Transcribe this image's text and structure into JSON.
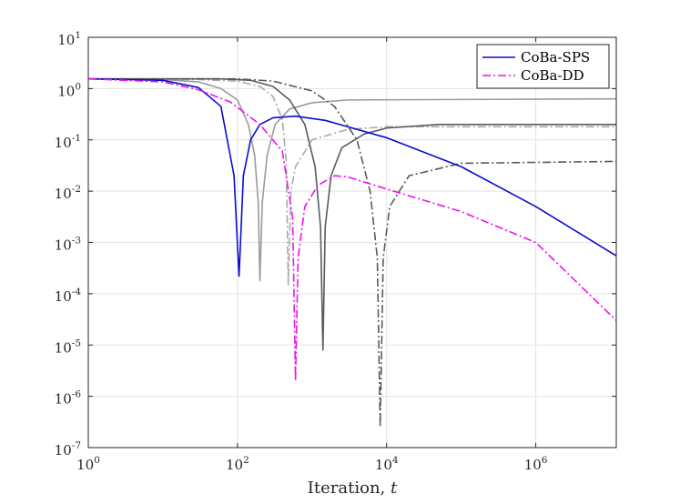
{
  "chart_data": {
    "type": "line",
    "title": "",
    "xlabel": "Iteration, ",
    "xlabel_var": "t",
    "ylabel": "",
    "xscale": "log",
    "yscale": "log",
    "xlim": [
      1,
      12000000
    ],
    "ylim": [
      1e-07,
      10
    ],
    "grid": true,
    "legend_position": "top-right",
    "x_ticks": [
      {
        "value": 1,
        "base": "10",
        "exp": "0"
      },
      {
        "value": 100,
        "base": "10",
        "exp": "2"
      },
      {
        "value": 10000,
        "base": "10",
        "exp": "4"
      },
      {
        "value": 1000000,
        "base": "10",
        "exp": "6"
      }
    ],
    "y_ticks": [
      {
        "value": 10,
        "base": "10",
        "exp": "1"
      },
      {
        "value": 1,
        "base": "10",
        "exp": "0"
      },
      {
        "value": 0.1,
        "base": "10",
        "exp": "-1"
      },
      {
        "value": 0.01,
        "base": "10",
        "exp": "-2"
      },
      {
        "value": 0.001,
        "base": "10",
        "exp": "-3"
      },
      {
        "value": 0.0001,
        "base": "10",
        "exp": "-4"
      },
      {
        "value": 1e-05,
        "base": "10",
        "exp": "-5"
      },
      {
        "value": 1e-06,
        "base": "10",
        "exp": "-6"
      },
      {
        "value": 1e-07,
        "base": "10",
        "exp": "-7"
      }
    ],
    "series": [
      {
        "name": "gray-solid-1",
        "legend": false,
        "color": "#9b9b9b",
        "dash": "solid",
        "points": [
          [
            1,
            1.55
          ],
          [
            10,
            1.5
          ],
          [
            30,
            1.35
          ],
          [
            60,
            1.0
          ],
          [
            100,
            0.6
          ],
          [
            140,
            0.2
          ],
          [
            170,
            0.05
          ],
          [
            190,
            0.006
          ],
          [
            200,
            0.00018
          ],
          [
            215,
            0.006
          ],
          [
            250,
            0.05
          ],
          [
            320,
            0.2
          ],
          [
            500,
            0.4
          ],
          [
            1000,
            0.53
          ],
          [
            3000,
            0.6
          ],
          [
            12000000,
            0.63
          ]
        ]
      },
      {
        "name": "gray-dashdot-1",
        "legend": false,
        "color": "#aaaaaa",
        "dash": "dashdot",
        "points": [
          [
            1,
            1.55
          ],
          [
            30,
            1.5
          ],
          [
            100,
            1.4
          ],
          [
            200,
            1.1
          ],
          [
            300,
            0.7
          ],
          [
            400,
            0.25
          ],
          [
            450,
            0.04
          ],
          [
            480,
            0.00015
          ],
          [
            520,
            0.01
          ],
          [
            600,
            0.03
          ],
          [
            1000,
            0.1
          ],
          [
            3000,
            0.16
          ],
          [
            10000,
            0.18
          ],
          [
            12000000,
            0.18
          ]
        ]
      },
      {
        "name": "dark-solid-1",
        "legend": false,
        "color": "#5a5a5a",
        "dash": "solid",
        "points": [
          [
            1,
            1.55
          ],
          [
            60,
            1.55
          ],
          [
            150,
            1.45
          ],
          [
            300,
            1.1
          ],
          [
            500,
            0.6
          ],
          [
            800,
            0.2
          ],
          [
            1100,
            0.03
          ],
          [
            1300,
            0.002
          ],
          [
            1400,
            8e-06
          ],
          [
            1500,
            0.002
          ],
          [
            1800,
            0.02
          ],
          [
            2500,
            0.07
          ],
          [
            5000,
            0.13
          ],
          [
            10000,
            0.17
          ],
          [
            50000,
            0.2
          ],
          [
            12000000,
            0.2
          ]
        ]
      },
      {
        "name": "dark-dashdot-1",
        "legend": false,
        "color": "#5a5a5a",
        "dash": "dashdot",
        "points": [
          [
            1,
            1.55
          ],
          [
            100,
            1.55
          ],
          [
            300,
            1.4
          ],
          [
            1000,
            0.9
          ],
          [
            2000,
            0.45
          ],
          [
            4000,
            0.1
          ],
          [
            6000,
            0.01
          ],
          [
            7500,
            0.0005
          ],
          [
            8200,
            2.5e-07
          ],
          [
            9000,
            0.0005
          ],
          [
            11000,
            0.005
          ],
          [
            20000,
            0.02
          ],
          [
            100000,
            0.035
          ],
          [
            12000000,
            0.038
          ]
        ]
      },
      {
        "name": "CoBa-SPS",
        "legend": true,
        "color": "#0a0ad2",
        "dash": "solid",
        "points": [
          [
            1,
            1.55
          ],
          [
            10,
            1.45
          ],
          [
            30,
            1.05
          ],
          [
            60,
            0.45
          ],
          [
            90,
            0.02
          ],
          [
            105,
            0.00022
          ],
          [
            120,
            0.02
          ],
          [
            150,
            0.1
          ],
          [
            200,
            0.2
          ],
          [
            300,
            0.27
          ],
          [
            600,
            0.29
          ],
          [
            1500,
            0.24
          ],
          [
            10000,
            0.11
          ],
          [
            100000,
            0.03
          ],
          [
            1000000,
            0.005
          ],
          [
            12000000,
            0.00055
          ]
        ]
      },
      {
        "name": "CoBa-DD",
        "legend": true,
        "color": "#ee11ee",
        "dash": "dashdot",
        "points": [
          [
            1,
            1.55
          ],
          [
            10,
            1.35
          ],
          [
            30,
            0.95
          ],
          [
            80,
            0.55
          ],
          [
            200,
            0.2
          ],
          [
            400,
            0.06
          ],
          [
            550,
            0.003
          ],
          [
            600,
            2e-06
          ],
          [
            650,
            0.0005
          ],
          [
            800,
            0.005
          ],
          [
            1200,
            0.013
          ],
          [
            2000,
            0.02
          ],
          [
            3000,
            0.019
          ],
          [
            10000,
            0.011
          ],
          [
            100000,
            0.004
          ],
          [
            1000000,
            0.001
          ],
          [
            12000000,
            3e-05
          ]
        ]
      }
    ]
  }
}
